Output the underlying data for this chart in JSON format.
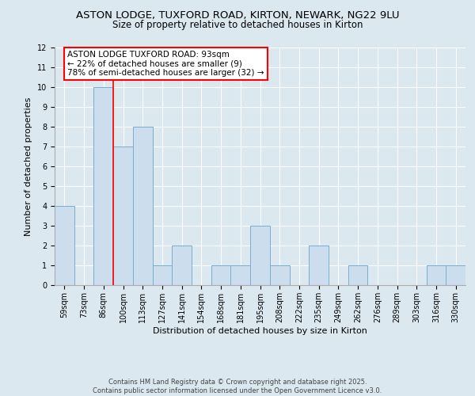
{
  "title1": "ASTON LODGE, TUXFORD ROAD, KIRTON, NEWARK, NG22 9LU",
  "title2": "Size of property relative to detached houses in Kirton",
  "xlabel": "Distribution of detached houses by size in Kirton",
  "ylabel": "Number of detached properties",
  "categories": [
    "59sqm",
    "73sqm",
    "86sqm",
    "100sqm",
    "113sqm",
    "127sqm",
    "141sqm",
    "154sqm",
    "168sqm",
    "181sqm",
    "195sqm",
    "208sqm",
    "222sqm",
    "235sqm",
    "249sqm",
    "262sqm",
    "276sqm",
    "289sqm",
    "303sqm",
    "316sqm",
    "330sqm"
  ],
  "values": [
    4,
    0,
    10,
    7,
    8,
    1,
    2,
    0,
    1,
    1,
    3,
    1,
    0,
    2,
    0,
    1,
    0,
    0,
    0,
    1,
    1
  ],
  "bar_color": "#ccdded",
  "bar_edge_color": "#7aadcc",
  "red_line_index": 2.5,
  "annotation_text": "ASTON LODGE TUXFORD ROAD: 93sqm\n← 22% of detached houses are smaller (9)\n78% of semi-detached houses are larger (32) →",
  "annotation_box_color": "white",
  "annotation_border_color": "red",
  "ylim": [
    0,
    12
  ],
  "yticks": [
    0,
    1,
    2,
    3,
    4,
    5,
    6,
    7,
    8,
    9,
    10,
    11,
    12
  ],
  "footnote": "Contains HM Land Registry data © Crown copyright and database right 2025.\nContains public sector information licensed under the Open Government Licence v3.0.",
  "background_color": "#dce8f0",
  "plot_background": "#dce8f0",
  "grid_color": "white",
  "title_fontsize": 9.5,
  "subtitle_fontsize": 8.5,
  "annotation_fontsize": 7.5,
  "axis_label_fontsize": 8,
  "tick_fontsize": 7
}
